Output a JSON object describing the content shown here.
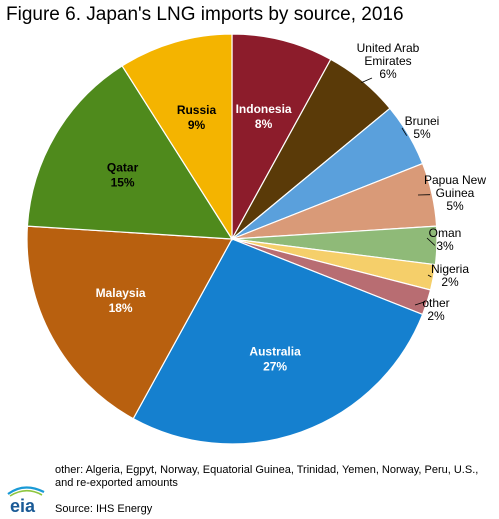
{
  "title": "Figure 6. Japan's LNG imports by source, 2016",
  "chart_data": {
    "type": "pie",
    "title": "Figure 6. Japan's LNG imports by source, 2016",
    "slices": [
      {
        "label": [
          "Indonesia"
        ],
        "pct_text": "8%",
        "value": 8,
        "color": "#8c1c2b",
        "placement": "inside",
        "text_color": "#ffffff"
      },
      {
        "label": [
          "United Arab",
          "Emirates"
        ],
        "pct_text": "6%",
        "value": 6,
        "color": "#5a3a08",
        "placement": "outside"
      },
      {
        "label": [
          "Brunei"
        ],
        "pct_text": "5%",
        "value": 5,
        "color": "#5aa0dc",
        "placement": "outside"
      },
      {
        "label": [
          "Papua New",
          "Guinea"
        ],
        "pct_text": "5%",
        "value": 5,
        "color": "#d99a78",
        "placement": "outside"
      },
      {
        "label": [
          "Oman"
        ],
        "pct_text": "3%",
        "value": 3,
        "color": "#8fba78",
        "placement": "outside"
      },
      {
        "label": [
          "Nigeria"
        ],
        "pct_text": "2%",
        "value": 2,
        "color": "#f5cf6a",
        "placement": "outside"
      },
      {
        "label": [
          "other"
        ],
        "pct_text": "2%",
        "value": 2,
        "color": "#b86d72",
        "placement": "outside"
      },
      {
        "label": [
          "Australia"
        ],
        "pct_text": "27%",
        "value": 27,
        "color": "#1580cf",
        "placement": "inside",
        "text_color": "#ffffff"
      },
      {
        "label": [
          "Malaysia"
        ],
        "pct_text": "18%",
        "value": 18,
        "color": "#b8600f",
        "placement": "inside",
        "text_color": "#ffffff"
      },
      {
        "label": [
          "Qatar"
        ],
        "pct_text": "15%",
        "value": 15,
        "color": "#4f8a1c",
        "placement": "inside",
        "text_color": "#000000"
      },
      {
        "label": [
          "Russia"
        ],
        "pct_text": "9%",
        "value": 9,
        "color": "#f4b400",
        "placement": "inside",
        "text_color": "#000000"
      }
    ]
  },
  "footnote": "other: Algeria, Egpyt, Norway, Equatorial Guinea, Trinidad, Yemen, Norway, Peru, U.S., and re-exported amounts",
  "source": "Source: IHS Energy",
  "logo_text": "eia"
}
